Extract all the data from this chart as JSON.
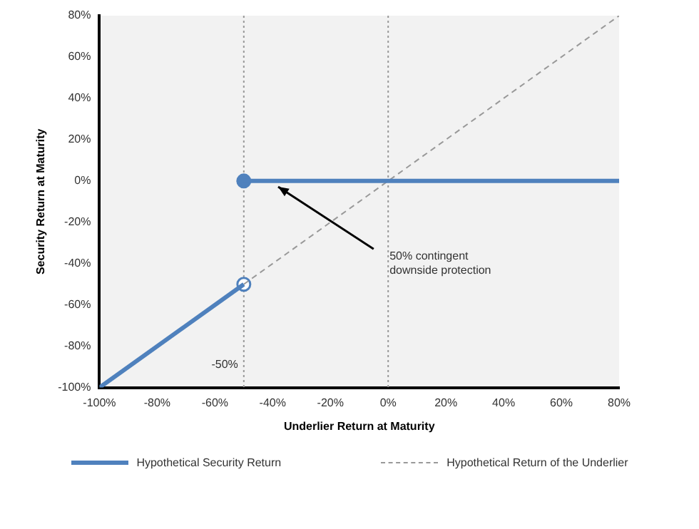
{
  "chart_data": {
    "type": "line",
    "xlabel": "Underlier Return at Maturity",
    "ylabel": "Security Return at Maturity",
    "xlim": [
      -100,
      80
    ],
    "xticks": [
      {
        "value": -100,
        "label": "-100%"
      },
      {
        "value": -80,
        "label": "-80%"
      },
      {
        "value": -60,
        "label": "-60%"
      },
      {
        "value": -40,
        "label": "-40%"
      },
      {
        "value": -20,
        "label": "-20%"
      },
      {
        "value": 0,
        "label": "0%"
      },
      {
        "value": 20,
        "label": "20%"
      },
      {
        "value": 40,
        "label": "40%"
      },
      {
        "value": 60,
        "label": "60%"
      },
      {
        "value": 80,
        "label": "80%"
      }
    ],
    "ylim": [
      -100,
      80
    ],
    "yticks": [
      {
        "value": -100,
        "label": "-100%"
      },
      {
        "value": -80,
        "label": "-80%"
      },
      {
        "value": -60,
        "label": "-60%"
      },
      {
        "value": -40,
        "label": "-40%"
      },
      {
        "value": -20,
        "label": "-20%"
      },
      {
        "value": 0,
        "label": "0%"
      },
      {
        "value": 20,
        "label": "20%"
      },
      {
        "value": 40,
        "label": "40%"
      },
      {
        "value": 60,
        "label": "60%"
      },
      {
        "value": 80,
        "label": "80%"
      }
    ],
    "series": [
      {
        "name": "Hypothetical Security Return",
        "color": "#4f81bd",
        "x": [
          -100,
          -50
        ],
        "values": [
          -100,
          -50
        ],
        "line_style": "solid",
        "marker": "none"
      },
      {
        "color": "#4f81bd",
        "x": [
          -50,
          80
        ],
        "values": [
          0,
          0
        ],
        "line_style": "solid",
        "marker": "none"
      },
      {
        "name": "Hypothetical Return of the Underlier",
        "color": "#999999",
        "x": [
          -50,
          80
        ],
        "values": [
          -50,
          80
        ],
        "line_style": "dashed",
        "marker": "none"
      },
      {
        "type": "scatter",
        "color": "#4f81bd",
        "x": [
          -50,
          -50
        ],
        "values": [
          0,
          -50
        ],
        "colors": [
          "#4f81bd",
          "#ffffff"
        ],
        "marker": "circle"
      }
    ],
    "ref_lines": [
      {
        "axis": "x",
        "value": -50,
        "label": "-50%",
        "line_style": "dotted",
        "color": "#999999"
      },
      {
        "axis": "x",
        "value": 0,
        "line_style": "dotted",
        "color": "#999999"
      }
    ],
    "annotations": [
      {
        "text": "50% contingent downside protection",
        "x": 0,
        "y": -40
      }
    ],
    "grid": false,
    "legend": "bottom"
  }
}
